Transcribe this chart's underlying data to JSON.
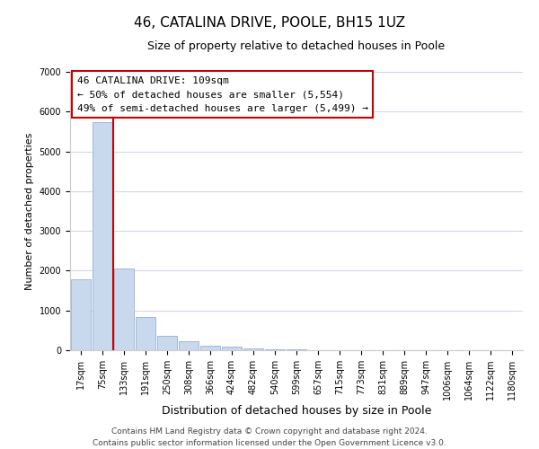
{
  "title": "46, CATALINA DRIVE, POOLE, BH15 1UZ",
  "subtitle": "Size of property relative to detached houses in Poole",
  "xlabel": "Distribution of detached houses by size in Poole",
  "ylabel": "Number of detached properties",
  "bar_labels": [
    "17sqm",
    "75sqm",
    "133sqm",
    "191sqm",
    "250sqm",
    "308sqm",
    "366sqm",
    "424sqm",
    "482sqm",
    "540sqm",
    "599sqm",
    "657sqm",
    "715sqm",
    "773sqm",
    "831sqm",
    "889sqm",
    "947sqm",
    "1006sqm",
    "1064sqm",
    "1122sqm",
    "1180sqm"
  ],
  "bar_values": [
    1780,
    5730,
    2050,
    830,
    370,
    230,
    105,
    80,
    50,
    30,
    20,
    10,
    5,
    0,
    0,
    0,
    0,
    0,
    0,
    0,
    0
  ],
  "bar_color": "#c9d9ed",
  "bar_edge_color": "#a0b8d8",
  "ylim": [
    0,
    7000
  ],
  "yticks": [
    0,
    1000,
    2000,
    3000,
    4000,
    5000,
    6000,
    7000
  ],
  "annotation_title": "46 CATALINA DRIVE: 109sqm",
  "annotation_line1": "← 50% of detached houses are smaller (5,554)",
  "annotation_line2": "49% of semi-detached houses are larger (5,499) →",
  "footer1": "Contains HM Land Registry data © Crown copyright and database right 2024.",
  "footer2": "Contains public sector information licensed under the Open Government Licence v3.0.",
  "grid_color": "#d0d8e8",
  "title_fontsize": 11,
  "subtitle_fontsize": 9,
  "xlabel_fontsize": 9,
  "ylabel_fontsize": 8,
  "annotation_box_edge_color": "#cc0000",
  "red_line_color": "#cc0000",
  "annotation_fontsize": 8,
  "tick_fontsize": 7,
  "footer_fontsize": 6.5
}
